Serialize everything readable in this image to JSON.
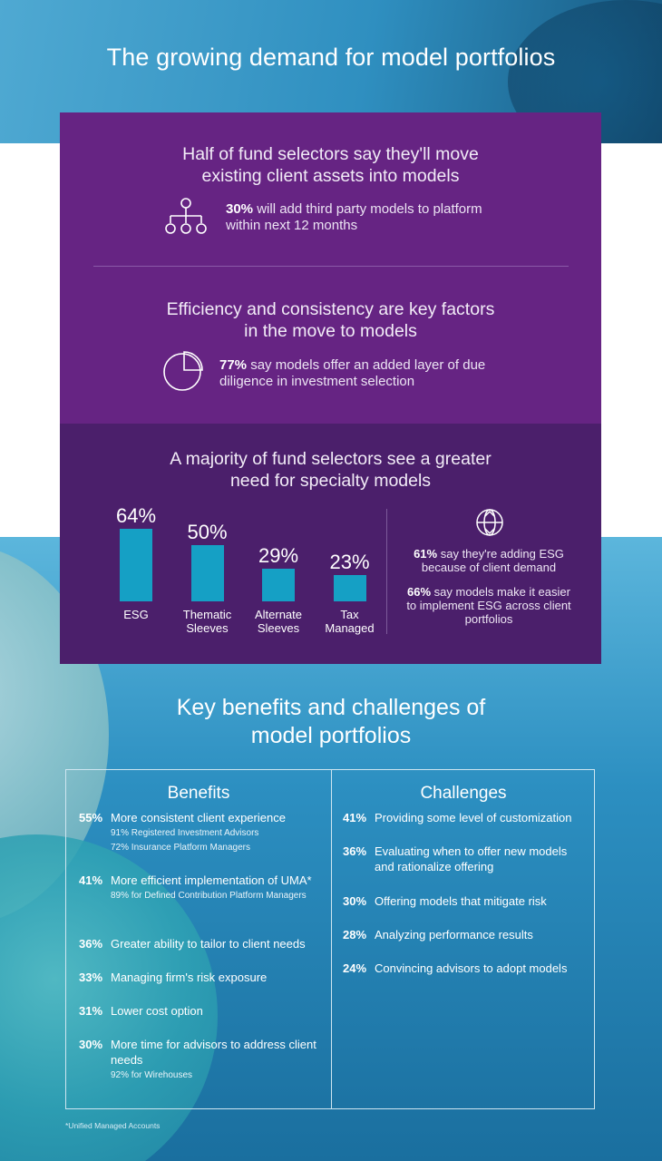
{
  "title": "The growing demand for model portfolios",
  "section1": {
    "heading": [
      "Half of fund selectors say they'll move",
      "existing client assets into models"
    ],
    "stat_pct": "30%",
    "stat_text_1": " will add third party models to platform",
    "stat_text_2": "within next 12 months",
    "icon": "hierarchy-icon"
  },
  "section2": {
    "heading": [
      "Efficiency and consistency are key factors",
      "in the move to models"
    ],
    "stat_pct": "77%",
    "stat_text_1": " say models offer an added layer of due",
    "stat_text_2": "diligence in investment selection",
    "icon": "pie-chart-icon"
  },
  "section3": {
    "heading": [
      "A majority of fund selectors see a greater",
      "need for specialty models"
    ],
    "icon": "globe-icon",
    "note1_pct": "61%",
    "note1_text_1": " say they're adding ESG",
    "note1_text_2": "because of client demand",
    "note2_pct": "66%",
    "note2_text_1": " say models make it easier",
    "note2_text_2": "to implement ESG across client",
    "note2_text_3": "portfolios"
  },
  "chart_data": {
    "type": "bar",
    "categories": [
      "ESG",
      "Thematic Sleeves",
      "Alternate Sleeves",
      "Tax Managed"
    ],
    "category_lines": [
      [
        "ESG"
      ],
      [
        "Thematic",
        "Sleeves"
      ],
      [
        "Alternate",
        "Sleeves"
      ],
      [
        "Tax",
        "Managed"
      ]
    ],
    "values": [
      64,
      50,
      29,
      23
    ],
    "value_labels": [
      "64%",
      "50%",
      "29%",
      "23%"
    ],
    "ylim": [
      0,
      64
    ],
    "bar_color": "#15a0c5",
    "grid": false
  },
  "key_benefits": {
    "title": [
      "Key benefits and challenges of",
      "model portfolios"
    ],
    "benefits_title": "Benefits",
    "challenges_title": "Challenges",
    "benefits": [
      {
        "pct": "55%",
        "text": "More consistent client experience",
        "subs": [
          "91% Registered Investment Advisors",
          "72% Insurance Platform Managers"
        ]
      },
      {
        "pct": "41%",
        "text": "More efficient implementation of UMA*",
        "subs": [
          "89% for Defined Contribution Platform Managers"
        ]
      },
      {
        "pct": "36%",
        "text": "Greater ability to tailor to client needs",
        "subs": []
      },
      {
        "pct": "33%",
        "text": "Managing firm's risk exposure",
        "subs": []
      },
      {
        "pct": "31%",
        "text": "Lower cost option",
        "subs": []
      },
      {
        "pct": "30%",
        "text": "More time for advisors to address client needs",
        "subs": [
          "92% for Wirehouses"
        ]
      }
    ],
    "challenges": [
      {
        "pct": "41%",
        "text": "Providing some level of customization"
      },
      {
        "pct": "36%",
        "text": "Evaluating when to offer new models and rationalize offering"
      },
      {
        "pct": "30%",
        "text": "Offering models that mitigate risk"
      },
      {
        "pct": "28%",
        "text": "Analyzing performance results"
      },
      {
        "pct": "24%",
        "text": "Convincing advisors to adopt models"
      }
    ]
  },
  "footnote": "*Unified Managed Accounts"
}
